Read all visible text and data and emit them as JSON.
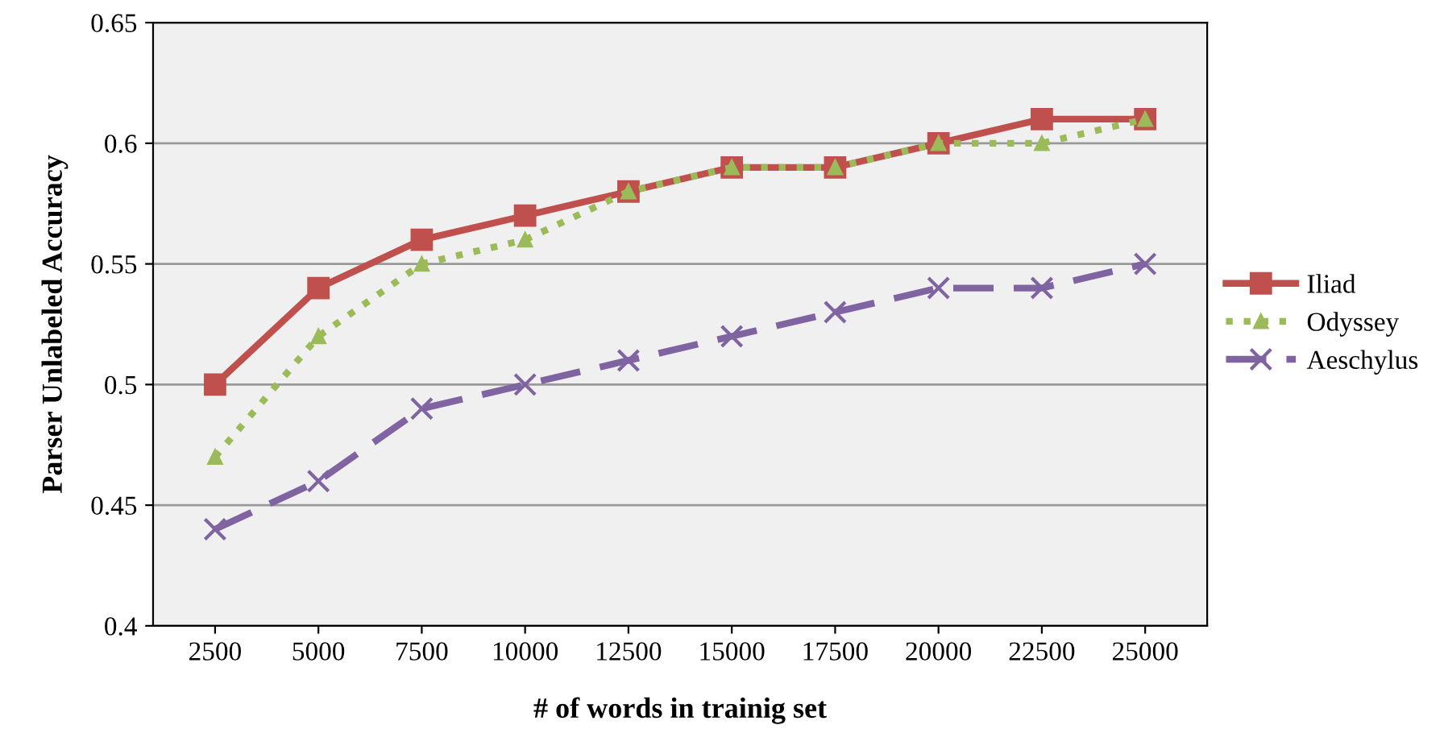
{
  "chart_data": {
    "type": "line",
    "xlabel": "# of words in trainig set",
    "ylabel": "Parser Unlabeled Accuracy",
    "categories": [
      "2500",
      "5000",
      "7500",
      "10000",
      "12500",
      "15000",
      "17500",
      "20000",
      "22500",
      "25000"
    ],
    "series": [
      {
        "name": "Iliad",
        "color": "#c0504d",
        "marker": "square",
        "line_style": "solid",
        "values": [
          0.5,
          0.54,
          0.56,
          0.57,
          0.58,
          0.59,
          0.59,
          0.6,
          0.61,
          0.61
        ]
      },
      {
        "name": "Odyssey",
        "color": "#9bbb59",
        "marker": "triangle",
        "line_style": "dotted",
        "values": [
          0.47,
          0.52,
          0.55,
          0.56,
          0.58,
          0.59,
          0.59,
          0.6,
          0.6,
          0.61
        ]
      },
      {
        "name": "Aeschylus",
        "color": "#8064a2",
        "marker": "cross",
        "line_style": "dashed",
        "values": [
          0.44,
          0.46,
          0.49,
          0.5,
          0.51,
          0.52,
          0.53,
          0.54,
          0.54,
          0.55
        ]
      }
    ],
    "ylim": [
      0.4,
      0.65
    ],
    "yticks": [
      0.4,
      0.45,
      0.5,
      0.55,
      0.6,
      0.65
    ],
    "grid": "y",
    "legend": "right"
  }
}
